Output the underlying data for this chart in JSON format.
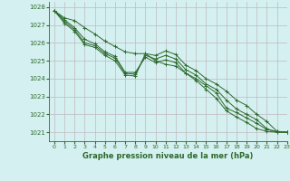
{
  "title": "Graphe pression niveau de la mer (hPa)",
  "background_color": "#d5f0f0",
  "plot_bg_color": "#d5f0f0",
  "line_color": "#2d6a2d",
  "grid_color": "#c8d8c8",
  "xlim": [
    -0.5,
    23
  ],
  "ylim": [
    1020.5,
    1028.3
  ],
  "yticks": [
    1021,
    1022,
    1023,
    1024,
    1025,
    1026,
    1027,
    1028
  ],
  "xticks": [
    0,
    1,
    2,
    3,
    4,
    5,
    6,
    7,
    8,
    9,
    10,
    11,
    12,
    13,
    14,
    15,
    16,
    17,
    18,
    19,
    20,
    21,
    22,
    23
  ],
  "series": [
    [
      1027.8,
      1027.4,
      1027.25,
      1026.85,
      1026.5,
      1026.1,
      1025.8,
      1025.5,
      1025.4,
      1025.4,
      1025.0,
      1024.8,
      1024.7,
      1024.3,
      1024.0,
      1023.6,
      1023.2,
      1022.35,
      1022.1,
      1021.8,
      1021.5,
      1021.15,
      1021.05,
      1021.0
    ],
    [
      1027.8,
      1027.3,
      1026.85,
      1026.2,
      1025.95,
      1025.5,
      1025.25,
      1024.35,
      1024.35,
      1025.2,
      1024.9,
      1025.05,
      1024.9,
      1024.3,
      1023.9,
      1023.4,
      1022.9,
      1022.2,
      1021.85,
      1021.55,
      1021.2,
      1021.05,
      1021.0,
      1021.0
    ],
    [
      1027.8,
      1027.2,
      1026.75,
      1026.0,
      1025.85,
      1025.4,
      1025.15,
      1024.3,
      1024.25,
      1025.3,
      1025.1,
      1025.3,
      1025.1,
      1024.5,
      1024.2,
      1023.7,
      1023.4,
      1022.8,
      1022.3,
      1022.0,
      1021.7,
      1021.2,
      1021.0,
      1021.0
    ],
    [
      1027.8,
      1027.1,
      1026.65,
      1025.9,
      1025.75,
      1025.3,
      1025.0,
      1024.2,
      1024.15,
      1025.4,
      1025.3,
      1025.55,
      1025.35,
      1024.75,
      1024.45,
      1024.0,
      1023.7,
      1023.3,
      1022.8,
      1022.5,
      1022.0,
      1021.6,
      1021.05,
      1021.0
    ]
  ]
}
